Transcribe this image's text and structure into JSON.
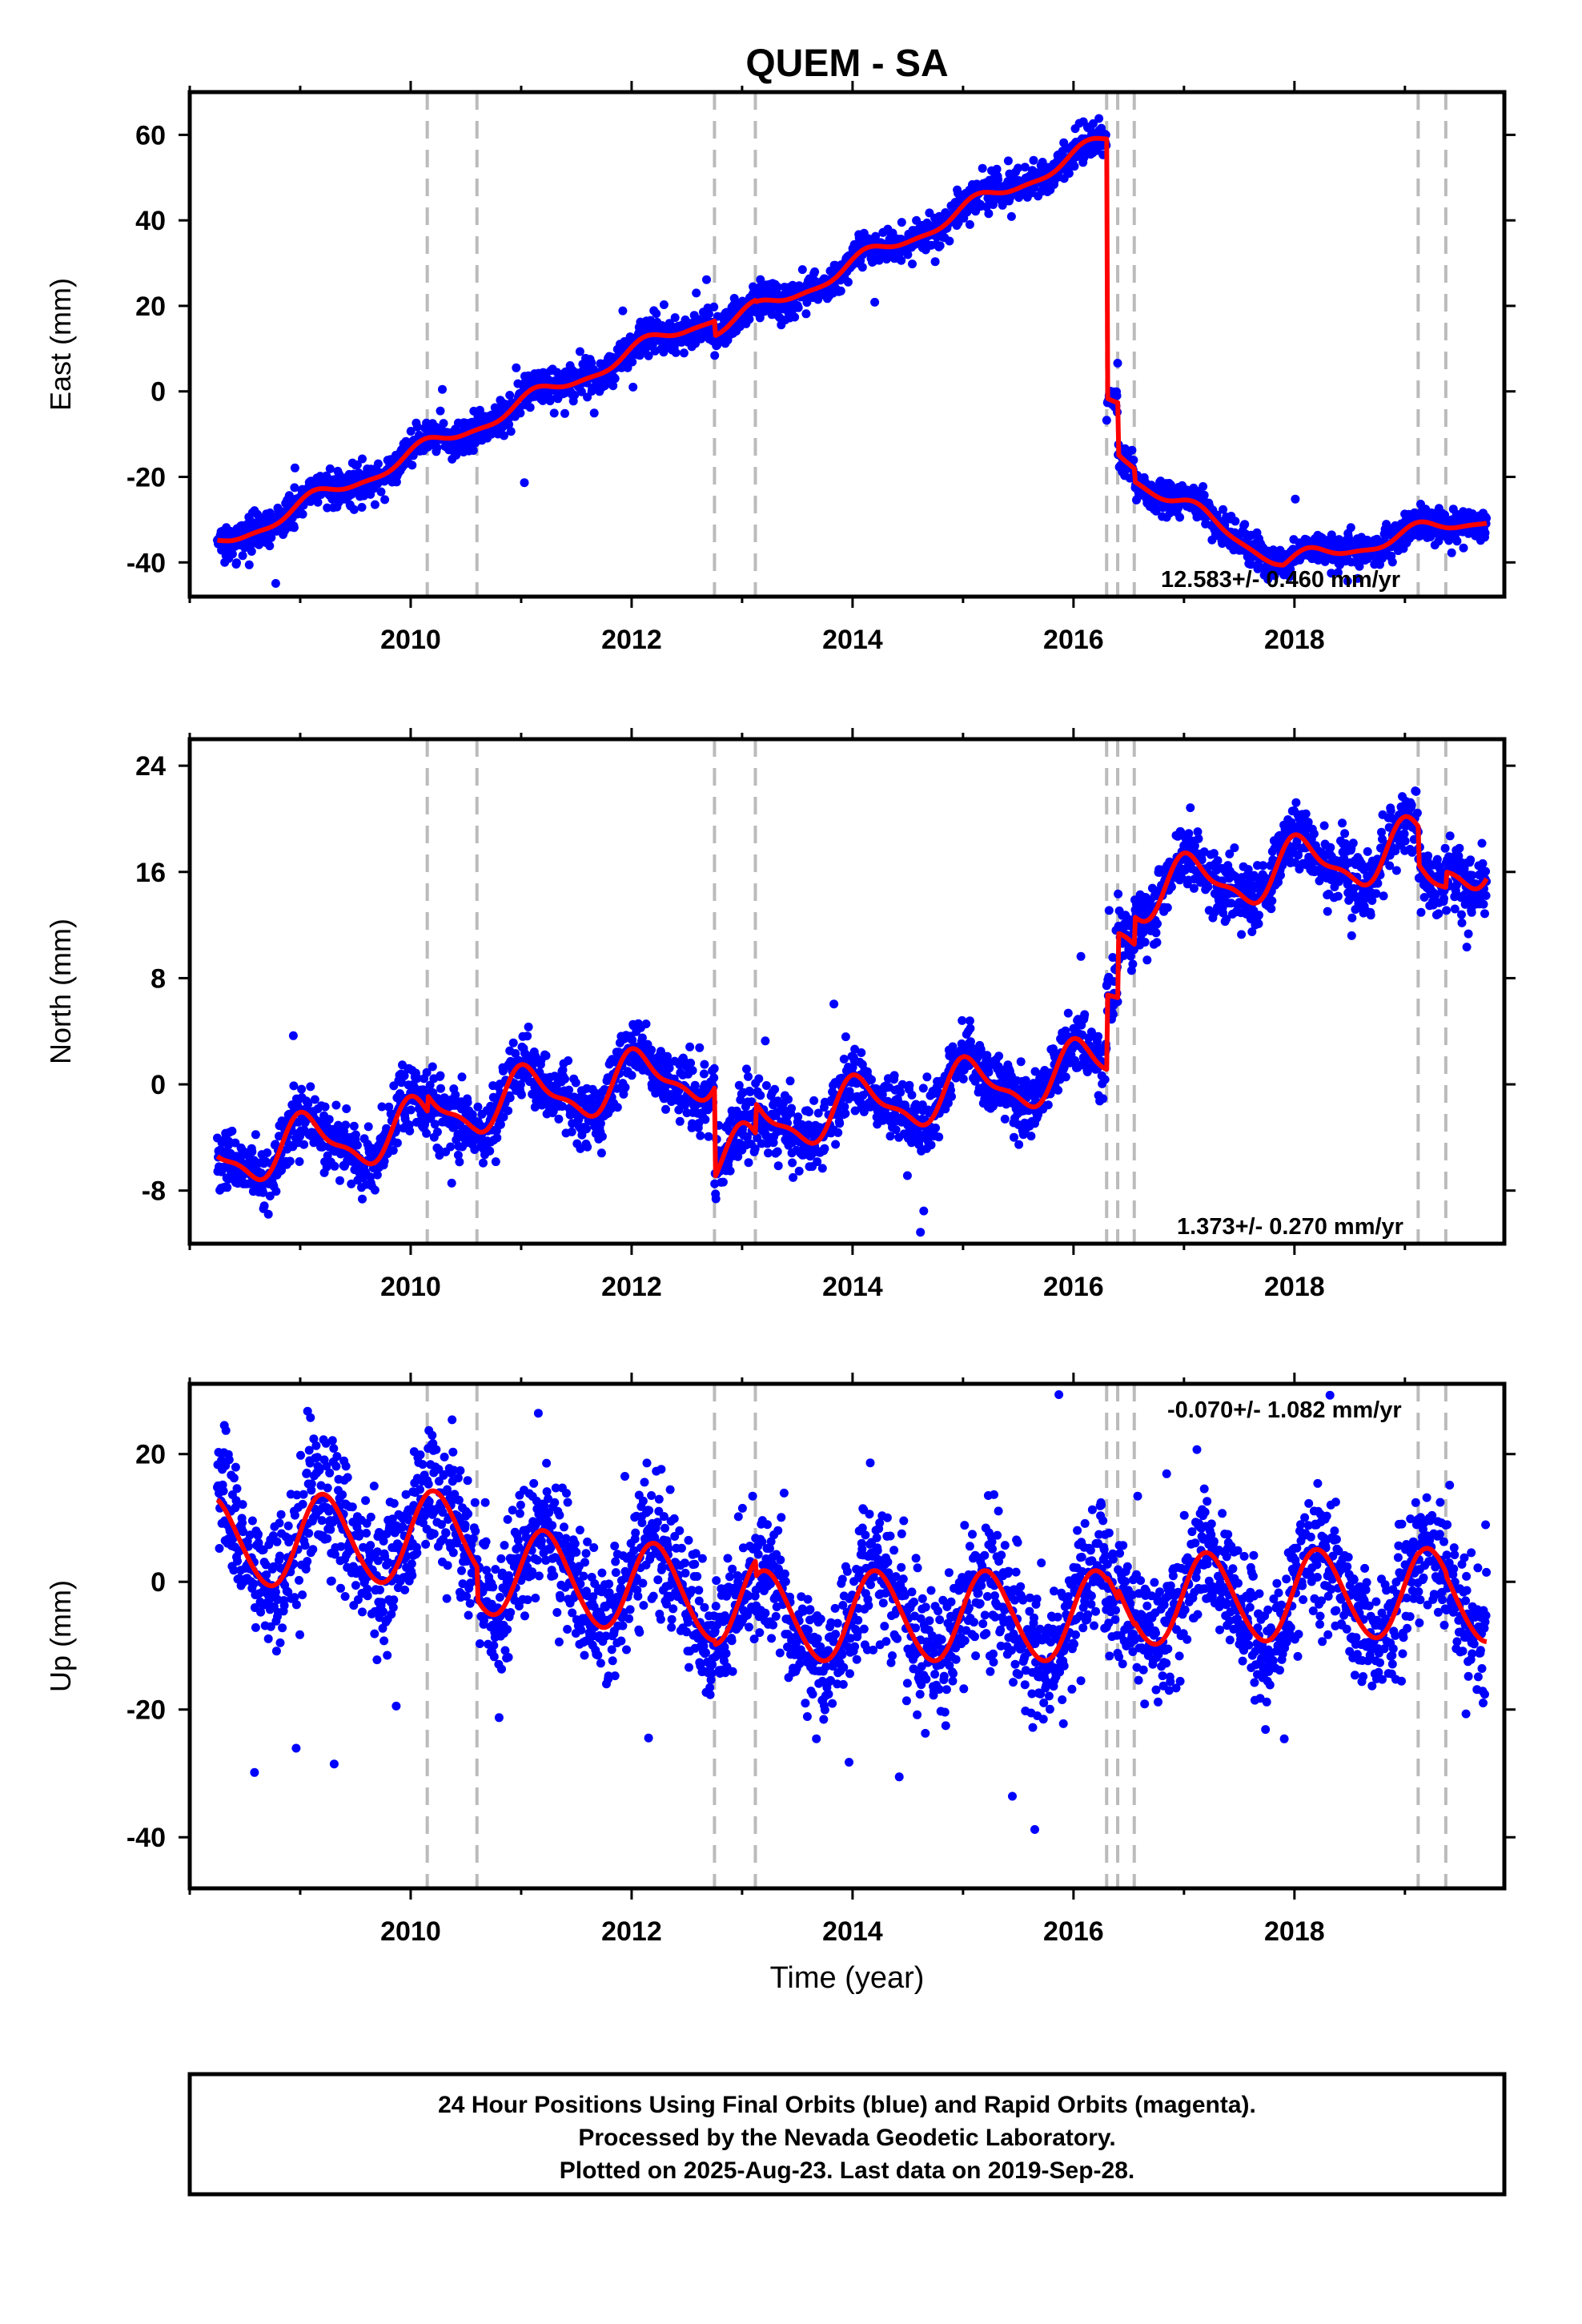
{
  "title": "QUEM - SA",
  "xlabel": "Time (year)",
  "footer": {
    "line1": "24 Hour Positions Using Final Orbits (blue) and Rapid Orbits (magenta).",
    "line2": "Processed by the Nevada Geodetic Laboratory.",
    "line3": "Plotted on 2025-Aug-23. Last data on 2019-Sep-28."
  },
  "colors": {
    "data": "#0000ff",
    "model": "#ff0000",
    "event": "#bbbbbb",
    "frame": "#000000"
  },
  "chart_data": [
    {
      "type": "scatter",
      "ylabel": "East (mm)",
      "rate_label": "12.583+/- 0.460 mm/yr",
      "xlim": [
        2008.0,
        2019.9
      ],
      "ylim": [
        -48,
        70
      ],
      "xticks": [
        2010,
        2012,
        2014,
        2016,
        2018
      ],
      "yticks": [
        -40,
        -20,
        0,
        20,
        40,
        60
      ],
      "event_lines": [
        2010.15,
        2010.6,
        2012.75,
        2013.12,
        2016.3,
        2016.4,
        2016.55,
        2019.12,
        2019.37
      ],
      "data_start": 2008.25,
      "data_end": 2019.74,
      "model": {
        "segments": [
          {
            "t0": 2008.25,
            "t1": 2010.15,
            "y0": -36,
            "rate": 12.0
          },
          {
            "t0": 2010.15,
            "t1": 2010.6,
            "y0": -13.2,
            "rate": 12.0
          },
          {
            "t0": 2010.6,
            "t1": 2012.75,
            "y0": -7.8,
            "rate": 12.0
          },
          {
            "t0": 2012.75,
            "t1": 2013.12,
            "y0": 14.5,
            "rate": 12.0
          },
          {
            "t0": 2013.12,
            "t1": 2016.3,
            "y0": 18.5,
            "rate": 12.6
          },
          {
            "t0": 2016.3,
            "t1": 2016.4,
            "y0": -2.0,
            "rate": 0.0
          },
          {
            "t0": 2016.4,
            "t1": 2016.55,
            "y0": -14.0,
            "rate": -20.0
          },
          {
            "t0": 2016.55,
            "t1": 2017.9,
            "y0": -20.0,
            "rate": -15.0
          },
          {
            "t0": 2017.9,
            "t1": 2019.37,
            "y0": -40.3,
            "rate": 6.0
          },
          {
            "t0": 2019.37,
            "t1": 2019.74,
            "y0": -31.5,
            "rate": 6.0
          }
        ],
        "annual_amp": 1.8,
        "annual_phase": 0.7,
        "semi_amp": 0.6,
        "semi_phase": 0.3
      },
      "noise_sd": 2.0,
      "outlier_frac": 0.01
    },
    {
      "type": "scatter",
      "ylabel": "North (mm)",
      "rate_label": "1.373+/- 0.270 mm/yr",
      "xlim": [
        2008.0,
        2019.9
      ],
      "ylim": [
        -12,
        26
      ],
      "xticks": [
        2010,
        2012,
        2014,
        2016,
        2018
      ],
      "yticks": [
        -8,
        0,
        8,
        16,
        24
      ],
      "event_lines": [
        2010.15,
        2010.6,
        2012.75,
        2013.12,
        2016.3,
        2016.4,
        2016.55,
        2019.12,
        2019.37
      ],
      "data_start": 2008.25,
      "data_end": 2019.74,
      "model": {
        "segments": [
          {
            "t0": 2008.25,
            "t1": 2010.15,
            "y0": -5.5,
            "rate": 1.2
          },
          {
            "t0": 2010.15,
            "t1": 2010.6,
            "y0": -2.0,
            "rate": 1.2
          },
          {
            "t0": 2010.6,
            "t1": 2012.75,
            "y0": -1.5,
            "rate": 1.2
          },
          {
            "t0": 2012.75,
            "t1": 2013.12,
            "y0": -5.7,
            "rate": 1.2
          },
          {
            "t0": 2013.12,
            "t1": 2016.3,
            "y0": -3.0,
            "rate": 1.37
          },
          {
            "t0": 2016.3,
            "t1": 2016.4,
            "y0": 7.0,
            "rate": 1.37
          },
          {
            "t0": 2016.4,
            "t1": 2016.55,
            "y0": 12.0,
            "rate": 1.37
          },
          {
            "t0": 2016.55,
            "t1": 2019.12,
            "y0": 14.3,
            "rate": 1.37
          },
          {
            "t0": 2019.12,
            "t1": 2019.37,
            "y0": 15.0,
            "rate": 1.37
          },
          {
            "t0": 2019.37,
            "t1": 2019.74,
            "y0": 16.5,
            "rate": 1.37
          }
        ],
        "annual_amp": 2.0,
        "annual_phase": 1.2,
        "semi_amp": 0.7,
        "semi_phase": 2.0
      },
      "noise_sd": 1.2,
      "outlier_frac": 0.01
    },
    {
      "type": "scatter",
      "ylabel": "Up (mm)",
      "rate_label": "-0.070+/- 1.082 mm/yr",
      "xlim": [
        2008.0,
        2019.9
      ],
      "ylim": [
        -48,
        31
      ],
      "xticks": [
        2010,
        2012,
        2014,
        2016,
        2018
      ],
      "yticks": [
        -40,
        -20,
        0,
        20
      ],
      "event_lines": [
        2010.15,
        2010.6,
        2012.75,
        2013.12,
        2016.3,
        2016.4,
        2016.55,
        2019.12,
        2019.37
      ],
      "data_start": 2008.25,
      "data_end": 2019.74,
      "model": {
        "segments": [
          {
            "t0": 2008.25,
            "t1": 2010.15,
            "y0": 6.0,
            "rate": 0.5
          },
          {
            "t0": 2010.15,
            "t1": 2010.6,
            "y0": 7.0,
            "rate": 0.0
          },
          {
            "t0": 2010.6,
            "t1": 2012.75,
            "y0": 2.0,
            "rate": -2.0
          },
          {
            "t0": 2012.75,
            "t1": 2013.12,
            "y0": -3.0,
            "rate": 0.0
          },
          {
            "t0": 2013.12,
            "t1": 2016.3,
            "y0": -5.5,
            "rate": 0.0
          },
          {
            "t0": 2016.3,
            "t1": 2016.4,
            "y0": -5.0,
            "rate": 0.0
          },
          {
            "t0": 2016.4,
            "t1": 2016.55,
            "y0": -3.5,
            "rate": 0.0
          },
          {
            "t0": 2016.55,
            "t1": 2019.12,
            "y0": -3.0,
            "rate": 0.5
          },
          {
            "t0": 2019.12,
            "t1": 2019.37,
            "y0": -2.0,
            "rate": 0.0
          },
          {
            "t0": 2019.37,
            "t1": 2019.74,
            "y0": -2.5,
            "rate": 0.0
          }
        ],
        "annual_amp": 7.0,
        "annual_phase": 0.2,
        "semi_amp": 0.5,
        "semi_phase": 0.0
      },
      "noise_sd": 5.0,
      "outlier_frac": 0.015
    }
  ]
}
